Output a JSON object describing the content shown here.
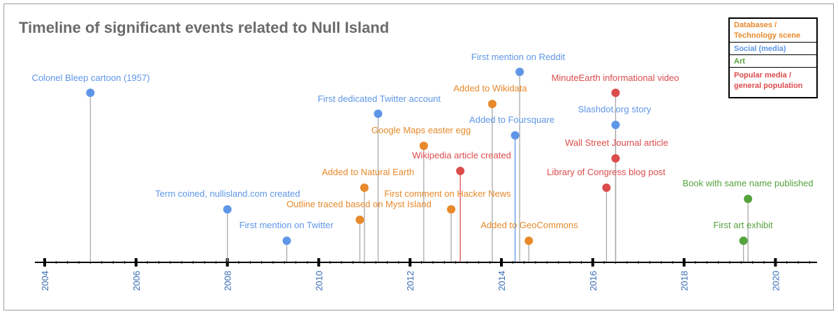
{
  "title": "Timeline of significant events related to Null Island",
  "legend": [
    {
      "label": "Databases / Technology scene",
      "color": "#e8892b"
    },
    {
      "label": "Social (media)",
      "color": "#5e96e8"
    },
    {
      "label": "Art",
      "color": "#56a33e"
    },
    {
      "label": "Popular media / general population",
      "color": "#dc4c4c"
    }
  ],
  "chart_data": {
    "type": "scatter",
    "title": "Timeline of significant events related to Null Island",
    "xlim": [
      2004,
      2021
    ],
    "x_ticks": [
      "2004",
      "2006",
      "2008",
      "2010",
      "2012",
      "2014",
      "2016",
      "2018",
      "2020"
    ],
    "tick_label_color": "#3a6db5",
    "axis_color": "#000000",
    "stem_color": "#aaaaaa",
    "grid": false,
    "legend_position": "top-right",
    "events": [
      {
        "label": "Colonel Bleep cartoon (1957)",
        "year": 2005.0,
        "category": "Social (media)",
        "color": "#5e96e8"
      },
      {
        "label": "Term coined, nullisland.com created",
        "year": 2008.0,
        "category": "Social (media)",
        "color": "#5e96e8"
      },
      {
        "label": "First mention on Twitter",
        "year": 2009.3,
        "category": "Social (media)",
        "color": "#5e96e8"
      },
      {
        "label": "Outline traced based on Myst Island",
        "year": 2010.9,
        "category": "Databases / Technology scene",
        "color": "#e8892b"
      },
      {
        "label": "Added to Natural Earth",
        "year": 2011.0,
        "category": "Databases / Technology scene",
        "color": "#e8892b"
      },
      {
        "label": "First dedicated Twitter account",
        "year": 2011.3,
        "category": "Social (media)",
        "color": "#5e96e8"
      },
      {
        "label": "Google Maps easter egg",
        "year": 2012.3,
        "category": "Databases / Technology scene",
        "color": "#e8892b"
      },
      {
        "label": "First comment on Hacker News",
        "year": 2012.9,
        "category": "Databases / Technology scene",
        "color": "#e8892b"
      },
      {
        "label": "Wikipedia article created",
        "year": 2013.1,
        "category": "Popular media / general population",
        "color": "#dc4c4c"
      },
      {
        "label": "Added to Wikidata",
        "year": 2013.8,
        "category": "Databases / Technology scene",
        "color": "#e8892b"
      },
      {
        "label": "Added to Foursquare",
        "year": 2014.3,
        "category": "Social (media)",
        "color": "#5e96e8"
      },
      {
        "label": "First mention on Reddit",
        "year": 2014.4,
        "category": "Social (media)",
        "color": "#5e96e8"
      },
      {
        "label": "Added to GeoCommons",
        "year": 2014.6,
        "category": "Databases / Technology scene",
        "color": "#e8892b"
      },
      {
        "label": "Library of Congress blog post",
        "year": 2016.3,
        "category": "Popular media / general population",
        "color": "#dc4c4c"
      },
      {
        "label": "Slashdot.org story",
        "year": 2016.5,
        "category": "Social (media)",
        "color": "#5e96e8"
      },
      {
        "label": "MinuteEarth informational video",
        "year": 2016.5,
        "category": "Popular media / general population",
        "color": "#dc4c4c"
      },
      {
        "label": "Wall Street Journal article",
        "year": 2016.5,
        "category": "Popular media / general population",
        "color": "#dc4c4c"
      },
      {
        "label": "First art exhibit",
        "year": 2019.3,
        "category": "Art",
        "color": "#56a33e"
      },
      {
        "label": "Book with same name published",
        "year": 2019.4,
        "category": "Art",
        "color": "#56a33e"
      }
    ]
  }
}
